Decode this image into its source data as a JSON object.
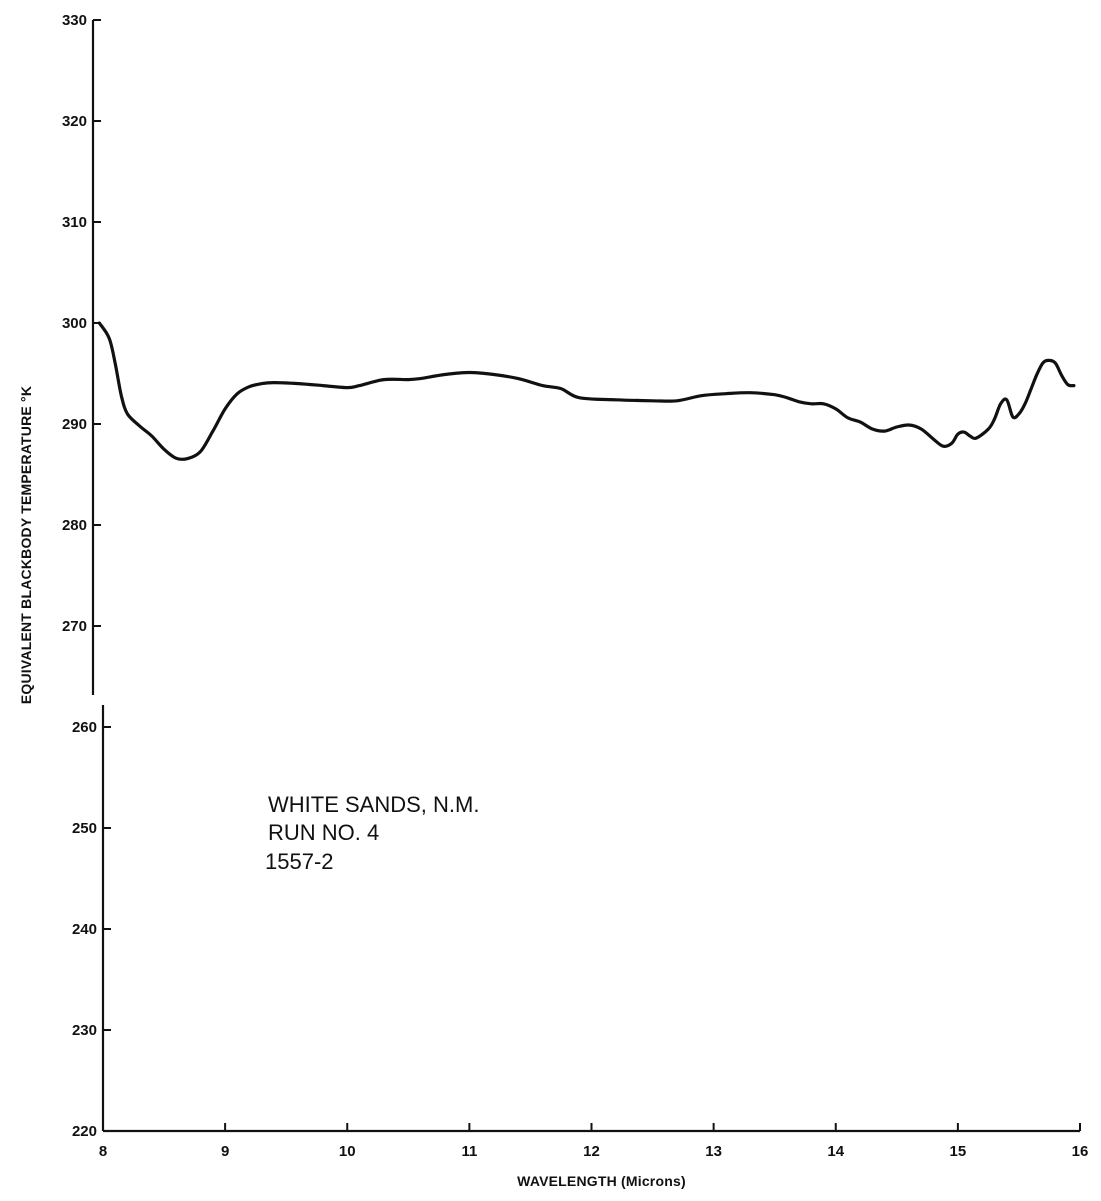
{
  "chart_data": {
    "type": "line",
    "title": "",
    "xlabel": "WAVELENGTH (Microns)",
    "ylabel": "EQUIVALENT BLACKBODY TEMPERATURE °K",
    "xlim": [
      8,
      16
    ],
    "ylim": [
      220,
      330
    ],
    "x_ticks": [
      8,
      9,
      10,
      11,
      12,
      13,
      14,
      15,
      16
    ],
    "y_ticks": [
      220,
      230,
      240,
      250,
      260,
      270,
      280,
      290,
      300,
      310,
      320,
      330
    ],
    "grid": false,
    "annotation": [
      "WHITE SANDS, N.M.",
      "RUN NO. 4",
      "1557-2"
    ],
    "series": [
      {
        "x": [
          7.97,
          8.05,
          8.1,
          8.15,
          8.2,
          8.3,
          8.4,
          8.5,
          8.6,
          8.7,
          8.8,
          8.9,
          9.0,
          9.1,
          9.2,
          9.3,
          9.4,
          9.6,
          9.8,
          10.0,
          10.1,
          10.3,
          10.5,
          10.6,
          10.8,
          11.0,
          11.2,
          11.4,
          11.6,
          11.75,
          11.9,
          12.2,
          12.5,
          12.7,
          12.9,
          13.1,
          13.3,
          13.5,
          13.6,
          13.7,
          13.8,
          13.9,
          14.0,
          14.1,
          14.2,
          14.3,
          14.4,
          14.5,
          14.6,
          14.7,
          14.8,
          14.88,
          14.95,
          15.0,
          15.05,
          15.1,
          15.15,
          15.25,
          15.3,
          15.35,
          15.4,
          15.45,
          15.5,
          15.55,
          15.6,
          15.65,
          15.7,
          15.75,
          15.8,
          15.85,
          15.9,
          15.95
        ],
        "y": [
          300.0,
          298.5,
          296.0,
          292.8,
          291.0,
          289.8,
          288.8,
          287.5,
          286.6,
          286.6,
          287.3,
          289.3,
          291.5,
          293.0,
          293.7,
          294.0,
          294.1,
          294.0,
          293.8,
          293.6,
          293.8,
          294.4,
          294.4,
          294.5,
          294.9,
          295.1,
          294.9,
          294.5,
          293.8,
          293.5,
          292.6,
          292.4,
          292.3,
          292.3,
          292.8,
          293.0,
          293.1,
          292.9,
          292.6,
          292.2,
          292.0,
          292.0,
          291.5,
          290.6,
          290.2,
          289.5,
          289.3,
          289.7,
          289.9,
          289.5,
          288.5,
          287.8,
          288.1,
          289.0,
          289.2,
          288.8,
          288.6,
          289.5,
          290.5,
          292.0,
          292.4,
          290.7,
          291.0,
          292.0,
          293.5,
          295.0,
          296.1,
          296.3,
          296.0,
          294.8,
          293.9,
          293.8
        ]
      }
    ]
  }
}
